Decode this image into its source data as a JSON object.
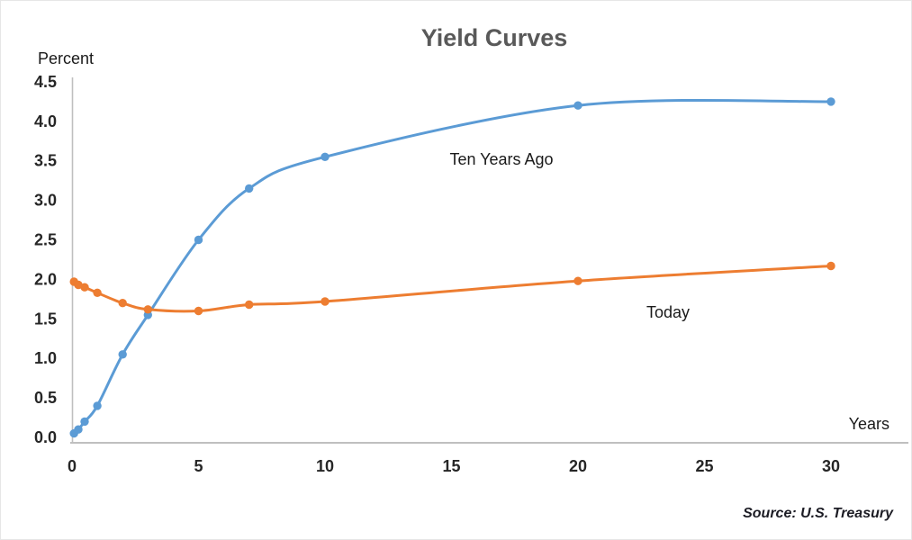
{
  "page": {
    "background_color": "#FFFFFF"
  },
  "chart_data": {
    "type": "line",
    "title": "Yield Curves",
    "ylabel": "Percent",
    "xlabel": "Years",
    "source_note": "Source: U.S. Treasury",
    "grid": false,
    "smooth": true,
    "legend_position": "inline-annotations",
    "xlim": [
      0,
      30
    ],
    "ylim": [
      0.0,
      4.5
    ],
    "x_tick_labels": [
      "0",
      "5",
      "10",
      "15",
      "20",
      "25",
      "30"
    ],
    "y_tick_labels": [
      "0.0",
      "0.5",
      "1.0",
      "1.5",
      "2.0",
      "2.5",
      "3.0",
      "3.5",
      "4.0",
      "4.5"
    ],
    "x": [
      0.08,
      0.25,
      0.5,
      1,
      2,
      3,
      5,
      7,
      10,
      20,
      30
    ],
    "series": [
      {
        "name": "Ten Years Ago",
        "color": "#5B9BD5",
        "values": [
          0.05,
          0.1,
          0.2,
          0.4,
          1.05,
          1.55,
          2.5,
          3.15,
          3.55,
          4.2,
          4.25
        ]
      },
      {
        "name": "Today",
        "color": "#ED7D31",
        "values": [
          1.97,
          1.93,
          1.9,
          1.83,
          1.7,
          1.62,
          1.6,
          1.68,
          1.72,
          1.98,
          2.17
        ]
      }
    ],
    "axis_color": "#BFBFBF",
    "tick_label_color": "#262626",
    "title_color": "#595959"
  }
}
